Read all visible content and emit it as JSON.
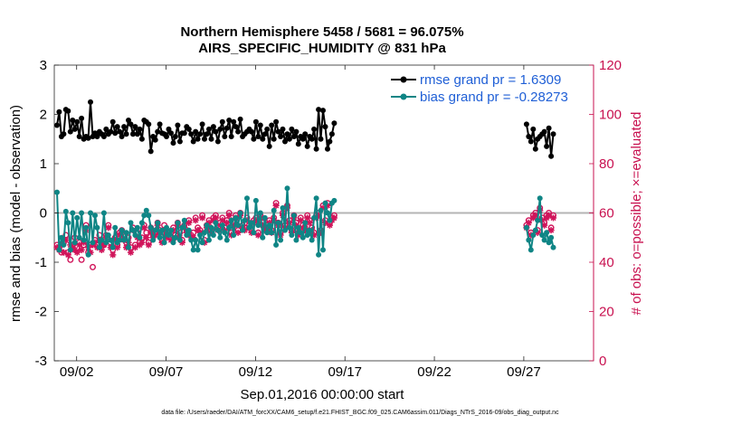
{
  "chart_data": {
    "type": "line",
    "title_line1": "Northern Hemisphere 5458 / 5681 = 96.075%",
    "title_line2": "AIRS_SPECIFIC_HUMIDITY @ 831 hPa",
    "ylabel_left": "rmse and bias (model - observation)",
    "ylabel_right": "# of obs: o=possible; ×=evaluated",
    "xlabel": "Sep.01,2016 00:00:00 start",
    "footnote": "data file: /Users/raeder/DAI/ATM_forcXX/CAM6_setup/f.e21.FHIST_BGC.f09_025.CAM6assim.011/Diags_NTrS_2016-09/obs_diag_output.nc",
    "ylim_left": [
      -3,
      3
    ],
    "ylim_right": [
      0,
      120
    ],
    "xlim": [
      0.75,
      30.9
    ],
    "left_ticks": [
      "-3",
      "-2",
      "-1",
      "0",
      "1",
      "2",
      "3"
    ],
    "right_ticks": [
      "0",
      "20",
      "40",
      "60",
      "80",
      "100",
      "120"
    ],
    "x_ticks": [
      {
        "value": 2,
        "label": "09/02"
      },
      {
        "value": 7,
        "label": "09/07"
      },
      {
        "value": 12,
        "label": "09/12"
      },
      {
        "value": 17,
        "label": "09/17"
      },
      {
        "value": 22,
        "label": "09/22"
      },
      {
        "value": 27,
        "label": "09/27"
      }
    ],
    "colors": {
      "rmse": "#000000",
      "bias": "#0f8585",
      "obs": "#d0145a",
      "zero_line": "#b4b4b4",
      "right_axis": "#c8104f",
      "legend_text": "#1f5fd6"
    },
    "legend": [
      {
        "label": "rmse grand pr = 1.6309",
        "series": "rmse"
      },
      {
        "label": "bias grand pr = -0.28273",
        "series": "bias"
      }
    ],
    "series": [
      {
        "name": "rmse",
        "segments": [
          {
            "x_start": 0.9,
            "dx": 0.125,
            "values": [
              1.78,
              2.05,
              1.55,
              1.6,
              2.1,
              2.07,
              1.65,
              1.88,
              1.7,
              1.85,
              1.55,
              1.92,
              1.5,
              1.55,
              1.52,
              2.25,
              1.55,
              1.62,
              1.55,
              1.65,
              1.6,
              1.55,
              1.7,
              1.6,
              1.65,
              1.85,
              1.62,
              1.75,
              1.65,
              1.55,
              1.75,
              1.6,
              1.88,
              1.8,
              1.6,
              1.75,
              1.6,
              1.7,
              1.5,
              1.88,
              1.85,
              1.8,
              1.25,
              1.55,
              1.48,
              1.65,
              1.8,
              1.62,
              1.6,
              1.55,
              1.7,
              1.62,
              1.42,
              1.55,
              1.78,
              1.45,
              1.62,
              1.62,
              1.75,
              1.7,
              1.6,
              1.45,
              1.65,
              1.5,
              1.6,
              1.8,
              1.5,
              1.6,
              1.7,
              1.5,
              1.75,
              1.65,
              1.45,
              1.7,
              1.85,
              1.55,
              1.72,
              1.88,
              1.55,
              1.85,
              1.75,
              1.65,
              1.9,
              1.55,
              1.6,
              1.65,
              1.7,
              1.65,
              1.5,
              1.85,
              1.55,
              1.78,
              1.5,
              1.6,
              1.7,
              1.35,
              1.78,
              1.5,
              1.85,
              1.65,
              1.55,
              1.7,
              1.45,
              1.6,
              1.5,
              1.7,
              1.55,
              1.65,
              1.4,
              1.55,
              1.5,
              1.6,
              1.35,
              1.55,
              1.5,
              1.7,
              1.3,
              2.1,
              1.5,
              2.08,
              1.75,
              1.3,
              1.45,
              1.6,
              1.82
            ]
          },
          {
            "x_start": 27.15,
            "dx": 0.125,
            "values": [
              1.8,
              1.55,
              1.45,
              1.7,
              1.3,
              1.5,
              1.55,
              1.6,
              1.65,
              1.35,
              1.72,
              1.15,
              1.6
            ]
          }
        ]
      },
      {
        "name": "bias",
        "segments": [
          {
            "x_start": 0.9,
            "dx": 0.125,
            "values": [
              0.42,
              -0.75,
              -0.5,
              -0.65,
              0.03,
              -0.2,
              -0.75,
              0.0,
              -0.6,
              -0.1,
              -0.5,
              0.0,
              -0.55,
              -0.3,
              -0.85,
              0.0,
              -0.6,
              -0.05,
              -0.3,
              -0.7,
              -0.55,
              0.0,
              -0.6,
              -0.45,
              -0.55,
              -0.7,
              -0.3,
              -0.6,
              -0.55,
              -0.35,
              -0.55,
              -0.4,
              -0.7,
              -0.2,
              -0.35,
              -0.45,
              -0.3,
              -0.5,
              -0.2,
              -0.05,
              0.05,
              -0.05,
              -0.3,
              -0.55,
              -0.35,
              -0.2,
              -0.5,
              -0.35,
              -0.6,
              -0.3,
              -0.45,
              -0.35,
              -0.6,
              -0.5,
              -0.2,
              -0.55,
              -0.3,
              -0.15,
              -0.45,
              -0.35,
              -0.55,
              -0.75,
              -0.55,
              -0.75,
              -0.45,
              -0.6,
              -0.4,
              -0.25,
              -0.55,
              -0.3,
              -0.45,
              -0.2,
              -0.35,
              -0.5,
              -0.25,
              -0.4,
              -0.55,
              -0.3,
              -0.15,
              -0.45,
              -0.1,
              -0.25,
              0.0,
              -0.35,
              -0.15,
              0.3,
              -0.3,
              -0.2,
              -0.4,
              0.25,
              -0.25,
              0.0,
              -0.5,
              -0.1,
              -0.4,
              -0.25,
              -0.4,
              0.05,
              -0.65,
              -0.2,
              -0.55,
              0.1,
              -0.35,
              0.5,
              -0.3,
              -0.45,
              -0.05,
              -0.55,
              -0.3,
              -0.4,
              -0.5,
              -0.2,
              -0.45,
              -0.35,
              -0.55,
              -0.1,
              0.3,
              -0.85,
              0.05,
              -0.75,
              0.2,
              0.0,
              -0.15,
              0.2,
              0.25
            ]
          },
          {
            "x_start": 27.15,
            "dx": 0.125,
            "values": [
              -0.3,
              -0.55,
              -0.75,
              -0.45,
              -0.35,
              -0.15,
              0.3,
              -0.45,
              -0.55,
              -0.4,
              -0.6,
              -0.5,
              -0.7
            ]
          }
        ]
      },
      {
        "name": "obs_possible",
        "segments": [
          {
            "x_start": 0.9,
            "dx": 0.125,
            "values": [
              47,
              46,
              44,
              48,
              51,
              44,
              41,
              47,
              50,
              46,
              48,
              41,
              47,
              55,
              44,
              47,
              38,
              49,
              47,
              51,
              48,
              47,
              51,
              55,
              48,
              45,
              50,
              47,
              52,
              53,
              51,
              48,
              50,
              46,
              54,
              47,
              52,
              48,
              50,
              55,
              52,
              48,
              54,
              51,
              52,
              56,
              53,
              49,
              55,
              51,
              52,
              50,
              54,
              51,
              56,
              52,
              49,
              55,
              53,
              57,
              51,
              52,
              58,
              54,
              53,
              59,
              49,
              55,
              57,
              53,
              58,
              59,
              54,
              56,
              58,
              54,
              57,
              60,
              52,
              56,
              59,
              53,
              60,
              55,
              54,
              58,
              55,
              53,
              57,
              58,
              52,
              59,
              56,
              54,
              55,
              57,
              53,
              58,
              64,
              56,
              52,
              60,
              55,
              63,
              57,
              53,
              59,
              56,
              52,
              58,
              55,
              54,
              59,
              57,
              54,
              52,
              59,
              60,
              53,
              63,
              57,
              64,
              56,
              58,
              59
            ]
          },
          {
            "x_start": 27.15,
            "dx": 0.125,
            "values": [
              55,
              57,
              52,
              59,
              60,
              53,
              62,
              58,
              56,
              59,
              60,
              54,
              59
            ]
          }
        ]
      },
      {
        "name": "obs_evaluated",
        "segments": [
          {
            "x_start": 0.9,
            "dx": 0.125,
            "values": [
              46,
              45,
              47,
              44,
              49,
              43,
              47,
              46,
              45,
              44,
              47,
              45,
              48,
              53,
              46,
              44,
              47,
              48,
              46,
              49,
              45,
              47,
              50,
              54,
              46,
              43,
              49,
              46,
              51,
              52,
              49,
              46,
              48,
              44,
              53,
              46,
              50,
              47,
              48,
              54,
              50,
              47,
              52,
              50,
              51,
              55,
              52,
              48,
              53,
              50,
              51,
              49,
              53,
              50,
              55,
              50,
              48,
              54,
              52,
              56,
              50,
              50,
              57,
              53,
              52,
              58,
              48,
              54,
              56,
              52,
              57,
              58,
              53,
              55,
              57,
              53,
              56,
              59,
              51,
              55,
              58,
              52,
              59,
              54,
              53,
              57,
              54,
              52,
              56,
              57,
              51,
              58,
              55,
              53,
              54,
              56,
              52,
              57,
              63,
              55,
              51,
              59,
              54,
              62,
              56,
              52,
              58,
              55,
              51,
              57,
              54,
              53,
              58,
              56,
              53,
              51,
              58,
              59,
              52,
              62,
              56,
              63,
              55,
              57,
              58
            ]
          },
          {
            "x_start": 27.15,
            "dx": 0.125,
            "values": [
              54,
              56,
              51,
              58,
              59,
              52,
              61,
              57,
              55,
              58,
              59,
              53,
              58
            ]
          }
        ]
      }
    ]
  }
}
